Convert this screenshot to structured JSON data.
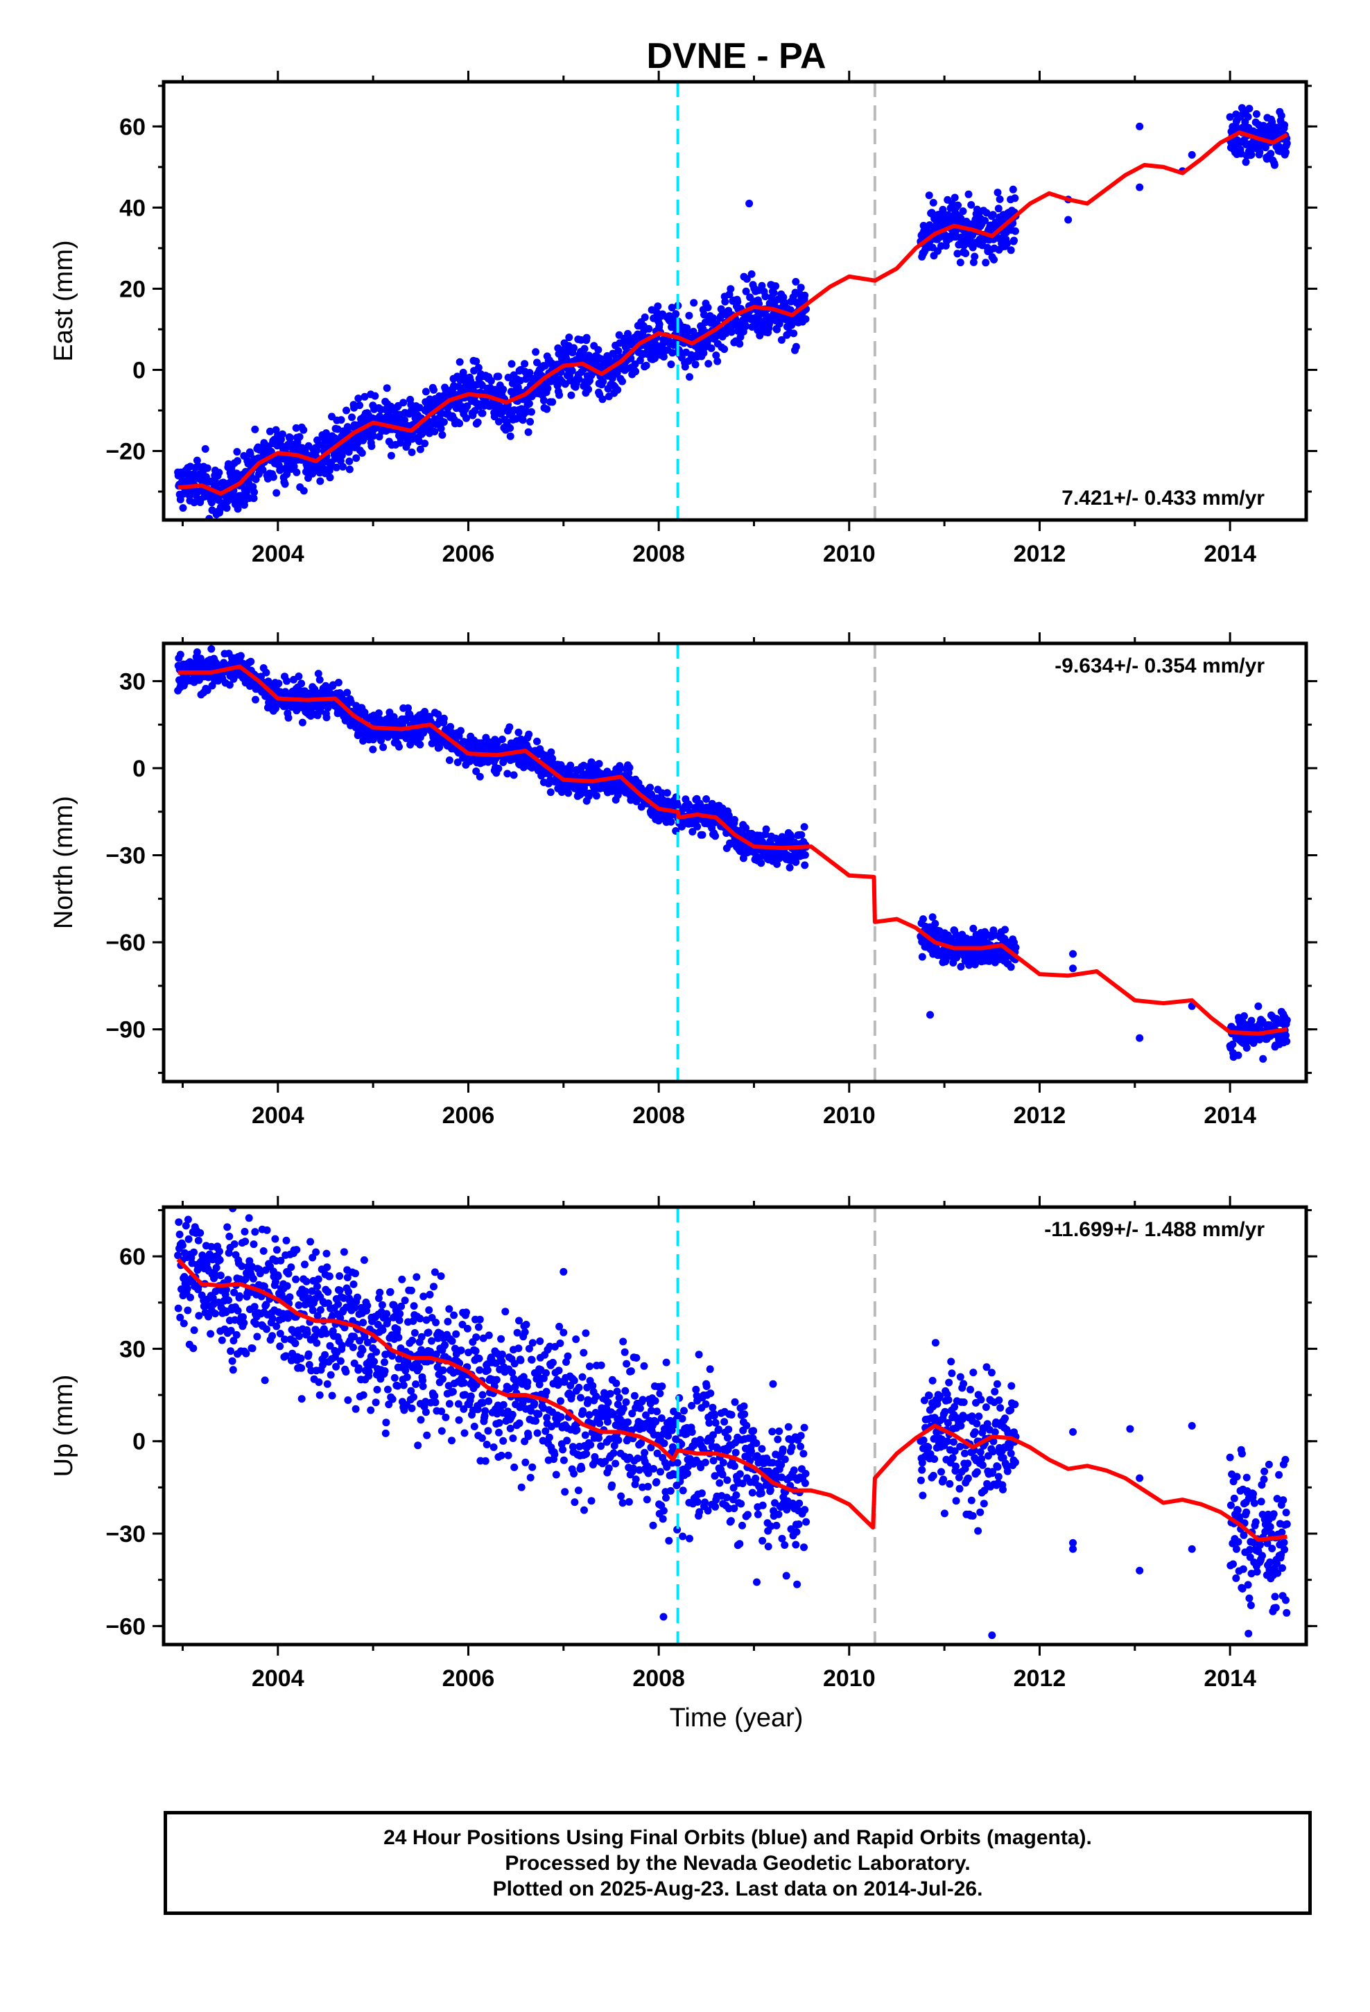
{
  "chart_data": {
    "type": "scatter",
    "title": "DVNE - PA",
    "xlabel": "Time (year)",
    "xlim": [
      2002.8,
      2014.8
    ],
    "x_ticks": [
      2004,
      2006,
      2008,
      2010,
      2012,
      2014
    ],
    "vertical_lines": [
      {
        "x": 2008.2,
        "color": "#00e5ff",
        "style": "dashed"
      },
      {
        "x": 2010.27,
        "color": "#bbbbbb",
        "style": "dashed"
      }
    ],
    "colors": {
      "points": "#0000ff",
      "fit": "#ff0000"
    },
    "panels": [
      {
        "ylabel": "East (mm)",
        "ylim": [
          -37,
          71
        ],
        "y_ticks": [
          -20,
          0,
          20,
          40,
          60
        ],
        "rate": "7.421+/- 0.433 mm/yr",
        "rate_position": "bottom-right",
        "fit": [
          [
            2002.95,
            -29
          ],
          [
            2003.2,
            -28.5
          ],
          [
            2003.4,
            -30.5
          ],
          [
            2003.6,
            -28
          ],
          [
            2003.8,
            -23
          ],
          [
            2004.0,
            -20.5
          ],
          [
            2004.2,
            -21
          ],
          [
            2004.4,
            -22.5
          ],
          [
            2004.6,
            -19
          ],
          [
            2004.8,
            -15.5
          ],
          [
            2005.0,
            -13
          ],
          [
            2005.2,
            -14
          ],
          [
            2005.4,
            -15
          ],
          [
            2005.6,
            -11
          ],
          [
            2005.8,
            -7.5
          ],
          [
            2006.0,
            -6
          ],
          [
            2006.2,
            -6.5
          ],
          [
            2006.4,
            -8
          ],
          [
            2006.6,
            -6
          ],
          [
            2006.8,
            -2
          ],
          [
            2007.0,
            1
          ],
          [
            2007.2,
            1.5
          ],
          [
            2007.4,
            -1
          ],
          [
            2007.6,
            2
          ],
          [
            2007.8,
            6.5
          ],
          [
            2008.0,
            9
          ],
          [
            2008.2,
            8
          ],
          [
            2008.35,
            6.5
          ],
          [
            2008.6,
            10
          ],
          [
            2008.8,
            13.5
          ],
          [
            2009.0,
            15.5
          ],
          [
            2009.2,
            15
          ],
          [
            2009.4,
            13.5
          ],
          [
            2009.6,
            17
          ],
          [
            2009.8,
            20.5
          ],
          [
            2010.0,
            23
          ],
          [
            2010.27,
            22
          ],
          [
            2010.5,
            25
          ],
          [
            2010.7,
            30
          ],
          [
            2010.9,
            33.5
          ],
          [
            2011.1,
            35.5
          ],
          [
            2011.3,
            34.5
          ],
          [
            2011.5,
            33
          ],
          [
            2011.7,
            37
          ],
          [
            2011.9,
            41
          ],
          [
            2012.1,
            43.5
          ],
          [
            2012.3,
            42
          ],
          [
            2012.5,
            41
          ],
          [
            2012.7,
            44.5
          ],
          [
            2012.9,
            48
          ],
          [
            2013.1,
            50.5
          ],
          [
            2013.3,
            50
          ],
          [
            2013.5,
            48.5
          ],
          [
            2013.7,
            52
          ],
          [
            2013.9,
            56
          ],
          [
            2014.1,
            58.5
          ],
          [
            2014.3,
            57
          ],
          [
            2014.45,
            56
          ],
          [
            2014.6,
            58
          ]
        ],
        "points": {
          "segments": [
            [
              2002.95,
              2009.55
            ],
            [
              2010.75,
              2011.75
            ],
            [
              2014.0,
              2014.6
            ]
          ],
          "sparse": [
            [
              2008.95,
              41
            ],
            [
              2012.3,
              37
            ],
            [
              2012.3,
              42
            ],
            [
              2013.05,
              45
            ],
            [
              2013.05,
              60
            ],
            [
              2013.6,
              53
            ],
            [
              2013.5,
              49
            ]
          ],
          "scatter_mm": 3.5
        }
      },
      {
        "ylabel": "North (mm)",
        "ylim": [
          -108,
          43
        ],
        "y_ticks": [
          -90,
          -60,
          -30,
          0,
          30
        ],
        "rate": "-9.634+/- 0.354 mm/yr",
        "rate_position": "top-right",
        "fit": [
          [
            2002.95,
            33
          ],
          [
            2003.3,
            33
          ],
          [
            2003.6,
            35
          ],
          [
            2003.8,
            30
          ],
          [
            2004.0,
            24
          ],
          [
            2004.3,
            23.5
          ],
          [
            2004.6,
            24
          ],
          [
            2004.8,
            18
          ],
          [
            2005.0,
            14
          ],
          [
            2005.3,
            13.5
          ],
          [
            2005.6,
            15
          ],
          [
            2005.8,
            10
          ],
          [
            2006.0,
            5
          ],
          [
            2006.3,
            4.5
          ],
          [
            2006.6,
            6
          ],
          [
            2006.8,
            1
          ],
          [
            2007.0,
            -4
          ],
          [
            2007.3,
            -4.5
          ],
          [
            2007.6,
            -3
          ],
          [
            2007.8,
            -9
          ],
          [
            2008.0,
            -14
          ],
          [
            2008.2,
            -15
          ],
          [
            2008.21,
            -17
          ],
          [
            2008.4,
            -16
          ],
          [
            2008.6,
            -17
          ],
          [
            2008.8,
            -23
          ],
          [
            2009.0,
            -27
          ],
          [
            2009.3,
            -27.5
          ],
          [
            2009.6,
            -27
          ],
          [
            2009.8,
            -32
          ],
          [
            2010.0,
            -37
          ],
          [
            2010.26,
            -37.5
          ],
          [
            2010.27,
            -53
          ],
          [
            2010.5,
            -52
          ],
          [
            2010.7,
            -55
          ],
          [
            2010.9,
            -60
          ],
          [
            2011.1,
            -62
          ],
          [
            2011.4,
            -62
          ],
          [
            2011.6,
            -61
          ],
          [
            2011.8,
            -66
          ],
          [
            2012.0,
            -71
          ],
          [
            2012.3,
            -71.5
          ],
          [
            2012.6,
            -70
          ],
          [
            2012.8,
            -75
          ],
          [
            2013.0,
            -80
          ],
          [
            2013.3,
            -81
          ],
          [
            2013.6,
            -80
          ],
          [
            2013.8,
            -86
          ],
          [
            2014.0,
            -91
          ],
          [
            2014.3,
            -91.5
          ],
          [
            2014.6,
            -90
          ]
        ],
        "points": {
          "segments": [
            [
              2002.95,
              2009.55
            ],
            [
              2010.75,
              2011.75
            ],
            [
              2014.0,
              2014.6
            ]
          ],
          "sparse": [
            [
              2012.35,
              -64
            ],
            [
              2012.35,
              -69
            ],
            [
              2013.05,
              -93
            ],
            [
              2013.6,
              -82
            ],
            [
              2010.85,
              -85
            ]
          ],
          "scatter_mm": 3
        }
      },
      {
        "ylabel": "Up (mm)",
        "ylim": [
          -66,
          76
        ],
        "y_ticks": [
          -60,
          -30,
          0,
          30,
          60
        ],
        "rate": "-11.699+/- 1.488 mm/yr",
        "rate_position": "top-right",
        "fit": [
          [
            2002.95,
            59
          ],
          [
            2003.2,
            51
          ],
          [
            2003.4,
            50.5
          ],
          [
            2003.6,
            51
          ],
          [
            2003.8,
            49
          ],
          [
            2004.0,
            46
          ],
          [
            2004.2,
            41.5
          ],
          [
            2004.4,
            39
          ],
          [
            2004.6,
            39
          ],
          [
            2004.8,
            37.5
          ],
          [
            2005.0,
            34.5
          ],
          [
            2005.2,
            29.5
          ],
          [
            2005.4,
            27
          ],
          [
            2005.6,
            27
          ],
          [
            2005.8,
            25.5
          ],
          [
            2006.0,
            22.5
          ],
          [
            2006.2,
            17.5
          ],
          [
            2006.4,
            15
          ],
          [
            2006.6,
            15
          ],
          [
            2006.8,
            13.5
          ],
          [
            2007.0,
            10.5
          ],
          [
            2007.2,
            5.5
          ],
          [
            2007.4,
            3
          ],
          [
            2007.6,
            3
          ],
          [
            2007.8,
            1.5
          ],
          [
            2008.0,
            -1.5
          ],
          [
            2008.15,
            -6
          ],
          [
            2008.2,
            -3
          ],
          [
            2008.4,
            -4
          ],
          [
            2008.6,
            -4
          ],
          [
            2008.8,
            -5.5
          ],
          [
            2009.0,
            -8.5
          ],
          [
            2009.2,
            -13.5
          ],
          [
            2009.4,
            -16
          ],
          [
            2009.6,
            -16
          ],
          [
            2009.8,
            -17.5
          ],
          [
            2010.0,
            -20.5
          ],
          [
            2010.25,
            -28
          ],
          [
            2010.27,
            -12
          ],
          [
            2010.5,
            -4
          ],
          [
            2010.7,
            1
          ],
          [
            2010.9,
            5
          ],
          [
            2011.1,
            2
          ],
          [
            2011.3,
            -2
          ],
          [
            2011.5,
            1.5
          ],
          [
            2011.7,
            1
          ],
          [
            2011.9,
            -2
          ],
          [
            2012.1,
            -6
          ],
          [
            2012.3,
            -9
          ],
          [
            2012.5,
            -8
          ],
          [
            2012.7,
            -9.5
          ],
          [
            2012.9,
            -12
          ],
          [
            2013.1,
            -16
          ],
          [
            2013.3,
            -20
          ],
          [
            2013.5,
            -19
          ],
          [
            2013.7,
            -20.5
          ],
          [
            2013.9,
            -23
          ],
          [
            2014.1,
            -27
          ],
          [
            2014.3,
            -32
          ],
          [
            2014.6,
            -31
          ]
        ],
        "points": {
          "segments": [
            [
              2002.95,
              2009.55
            ],
            [
              2010.75,
              2011.75
            ],
            [
              2014.0,
              2014.6
            ]
          ],
          "sparse": [
            [
              2012.35,
              -33
            ],
            [
              2012.35,
              -35
            ],
            [
              2012.35,
              3
            ],
            [
              2013.05,
              -42
            ],
            [
              2013.05,
              -12
            ],
            [
              2013.6,
              5
            ],
            [
              2013.6,
              -35
            ],
            [
              2012.95,
              4
            ],
            [
              2011.5,
              -63
            ],
            [
              2008.05,
              -57
            ],
            [
              2007.0,
              55
            ]
          ],
          "scatter_mm": 12
        }
      }
    ]
  },
  "footer": {
    "line1": "24 Hour Positions Using Final Orbits (blue) and Rapid Orbits (magenta).",
    "line2": "Processed by the Nevada Geodetic Laboratory.",
    "line3": "Plotted on 2025-Aug-23. Last data on 2014-Jul-26."
  }
}
